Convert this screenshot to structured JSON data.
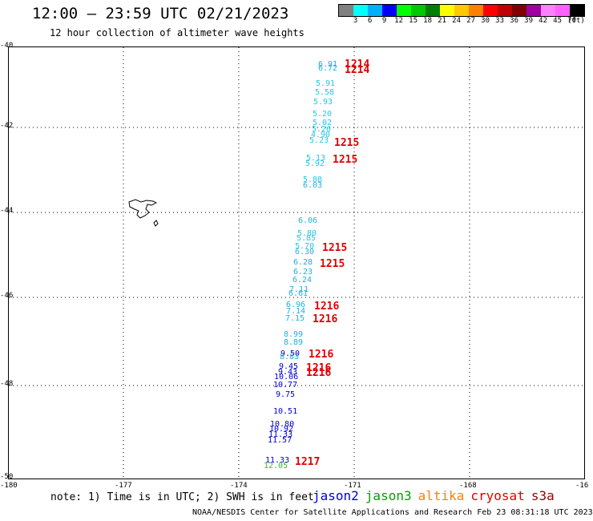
{
  "header": {
    "title": "12:00 – 23:59 UTC 02/21/2023",
    "subtitle": "12 hour collection of altimeter wave heights"
  },
  "colorbar": {
    "colors": [
      "#808080",
      "#00ffff",
      "#00b0ff",
      "#0000ff",
      "#00ff00",
      "#00c800",
      "#008000",
      "#ffff00",
      "#ffc800",
      "#ff8000",
      "#ff0000",
      "#c00000",
      "#800000",
      "#a000a0",
      "#ff80ff",
      "#ff60ff",
      "#000000"
    ],
    "labels": [
      "3",
      "6",
      "9",
      "12",
      "15",
      "18",
      "21",
      "24",
      "27",
      "30",
      "33",
      "36",
      "39",
      "42",
      "45",
      "70",
      "(ft)"
    ]
  },
  "axes": {
    "lat_labels": [
      "-40",
      "-42",
      "-44",
      "-46",
      "-48",
      "-50"
    ],
    "lon_labels": [
      "-180",
      "-177",
      "-174",
      "-171",
      "-168",
      "-16"
    ]
  },
  "wave_heights": [
    {
      "text": "6.91",
      "color": "#1fb0e0"
    },
    {
      "text": "6.72",
      "color": "#1fb0e0"
    },
    {
      "text": "5.91",
      "color": "#22c8e6"
    },
    {
      "text": "5.58",
      "color": "#22c8e6"
    },
    {
      "text": "5.93",
      "color": "#22c8e6"
    },
    {
      "text": "5.20",
      "color": "#22c8e6"
    },
    {
      "text": "5.02",
      "color": "#22c8e6"
    },
    {
      "text": "5.26",
      "color": "#22c8e6"
    },
    {
      "text": "4.90",
      "color": "#22c8e6"
    },
    {
      "text": "5.23",
      "color": "#22c8e6"
    },
    {
      "text": "5.13",
      "color": "#22c8e6"
    },
    {
      "text": "5.92",
      "color": "#22c8e6"
    },
    {
      "text": "5.88",
      "color": "#22c8e6"
    },
    {
      "text": "6.03",
      "color": "#1fb0e0"
    },
    {
      "text": "6.06",
      "color": "#1fb0e0"
    },
    {
      "text": "5.80",
      "color": "#22c8e6"
    },
    {
      "text": "5.85",
      "color": "#22c8e6"
    },
    {
      "text": "5.70",
      "color": "#22c8e6"
    },
    {
      "text": "6.30",
      "color": "#1fb0e0"
    },
    {
      "text": "6.28",
      "color": "#1fb0e0"
    },
    {
      "text": "6.23",
      "color": "#1fb0e0"
    },
    {
      "text": "6.24",
      "color": "#1fb0e0"
    },
    {
      "text": "7.11",
      "color": "#1fb0e0"
    },
    {
      "text": "6.61",
      "color": "#1fb0e0"
    },
    {
      "text": "6.96",
      "color": "#1fb0e0"
    },
    {
      "text": "7.14",
      "color": "#1fb0e0"
    },
    {
      "text": "7.15",
      "color": "#1fb0e0"
    },
    {
      "text": "8.99",
      "color": "#1fb0e0"
    },
    {
      "text": "8.89",
      "color": "#1fb0e0"
    },
    {
      "text": "9.50",
      "color": "#0000cc"
    },
    {
      "text": "8.83",
      "color": "#1fb0e0"
    },
    {
      "text": "9.45",
      "color": "#0000cc"
    },
    {
      "text": "9.43",
      "color": "#0000cc"
    },
    {
      "text": "10.06",
      "color": "#0000cc"
    },
    {
      "text": "10.77",
      "color": "#0000cc"
    },
    {
      "text": "9.75",
      "color": "#0000cc"
    },
    {
      "text": "10.51",
      "color": "#0000cc"
    },
    {
      "text": "10.80",
      "color": "#0000cc"
    },
    {
      "text": "10.92",
      "color": "#0000cc"
    },
    {
      "text": "11.33",
      "color": "#0000cc"
    },
    {
      "text": "11.57",
      "color": "#0000cc"
    },
    {
      "text": "11.33",
      "color": "#0000cc"
    },
    {
      "text": "12.05",
      "color": "#30c030"
    }
  ],
  "pass_times": [
    "1214",
    "1214",
    "1215",
    "1215",
    "1215",
    "1215",
    "1216",
    "1216",
    "1216",
    "1216",
    "1216",
    "1217"
  ],
  "note": "note: 1) Time is in UTC; 2) SWH is in feet",
  "legend": [
    {
      "label": "jason2",
      "color": "#0000dd"
    },
    {
      "label": "jason3",
      "color": "#00a000"
    },
    {
      "label": "altika",
      "color": "#ff8000"
    },
    {
      "label": "cryosat",
      "color": "#e00000"
    },
    {
      "label": "s3a",
      "color": "#a00000"
    }
  ],
  "footer": "NOAA/NESDIS Center for Satellite Applications and Research   Feb 23 08:31:18 UTC 2023"
}
